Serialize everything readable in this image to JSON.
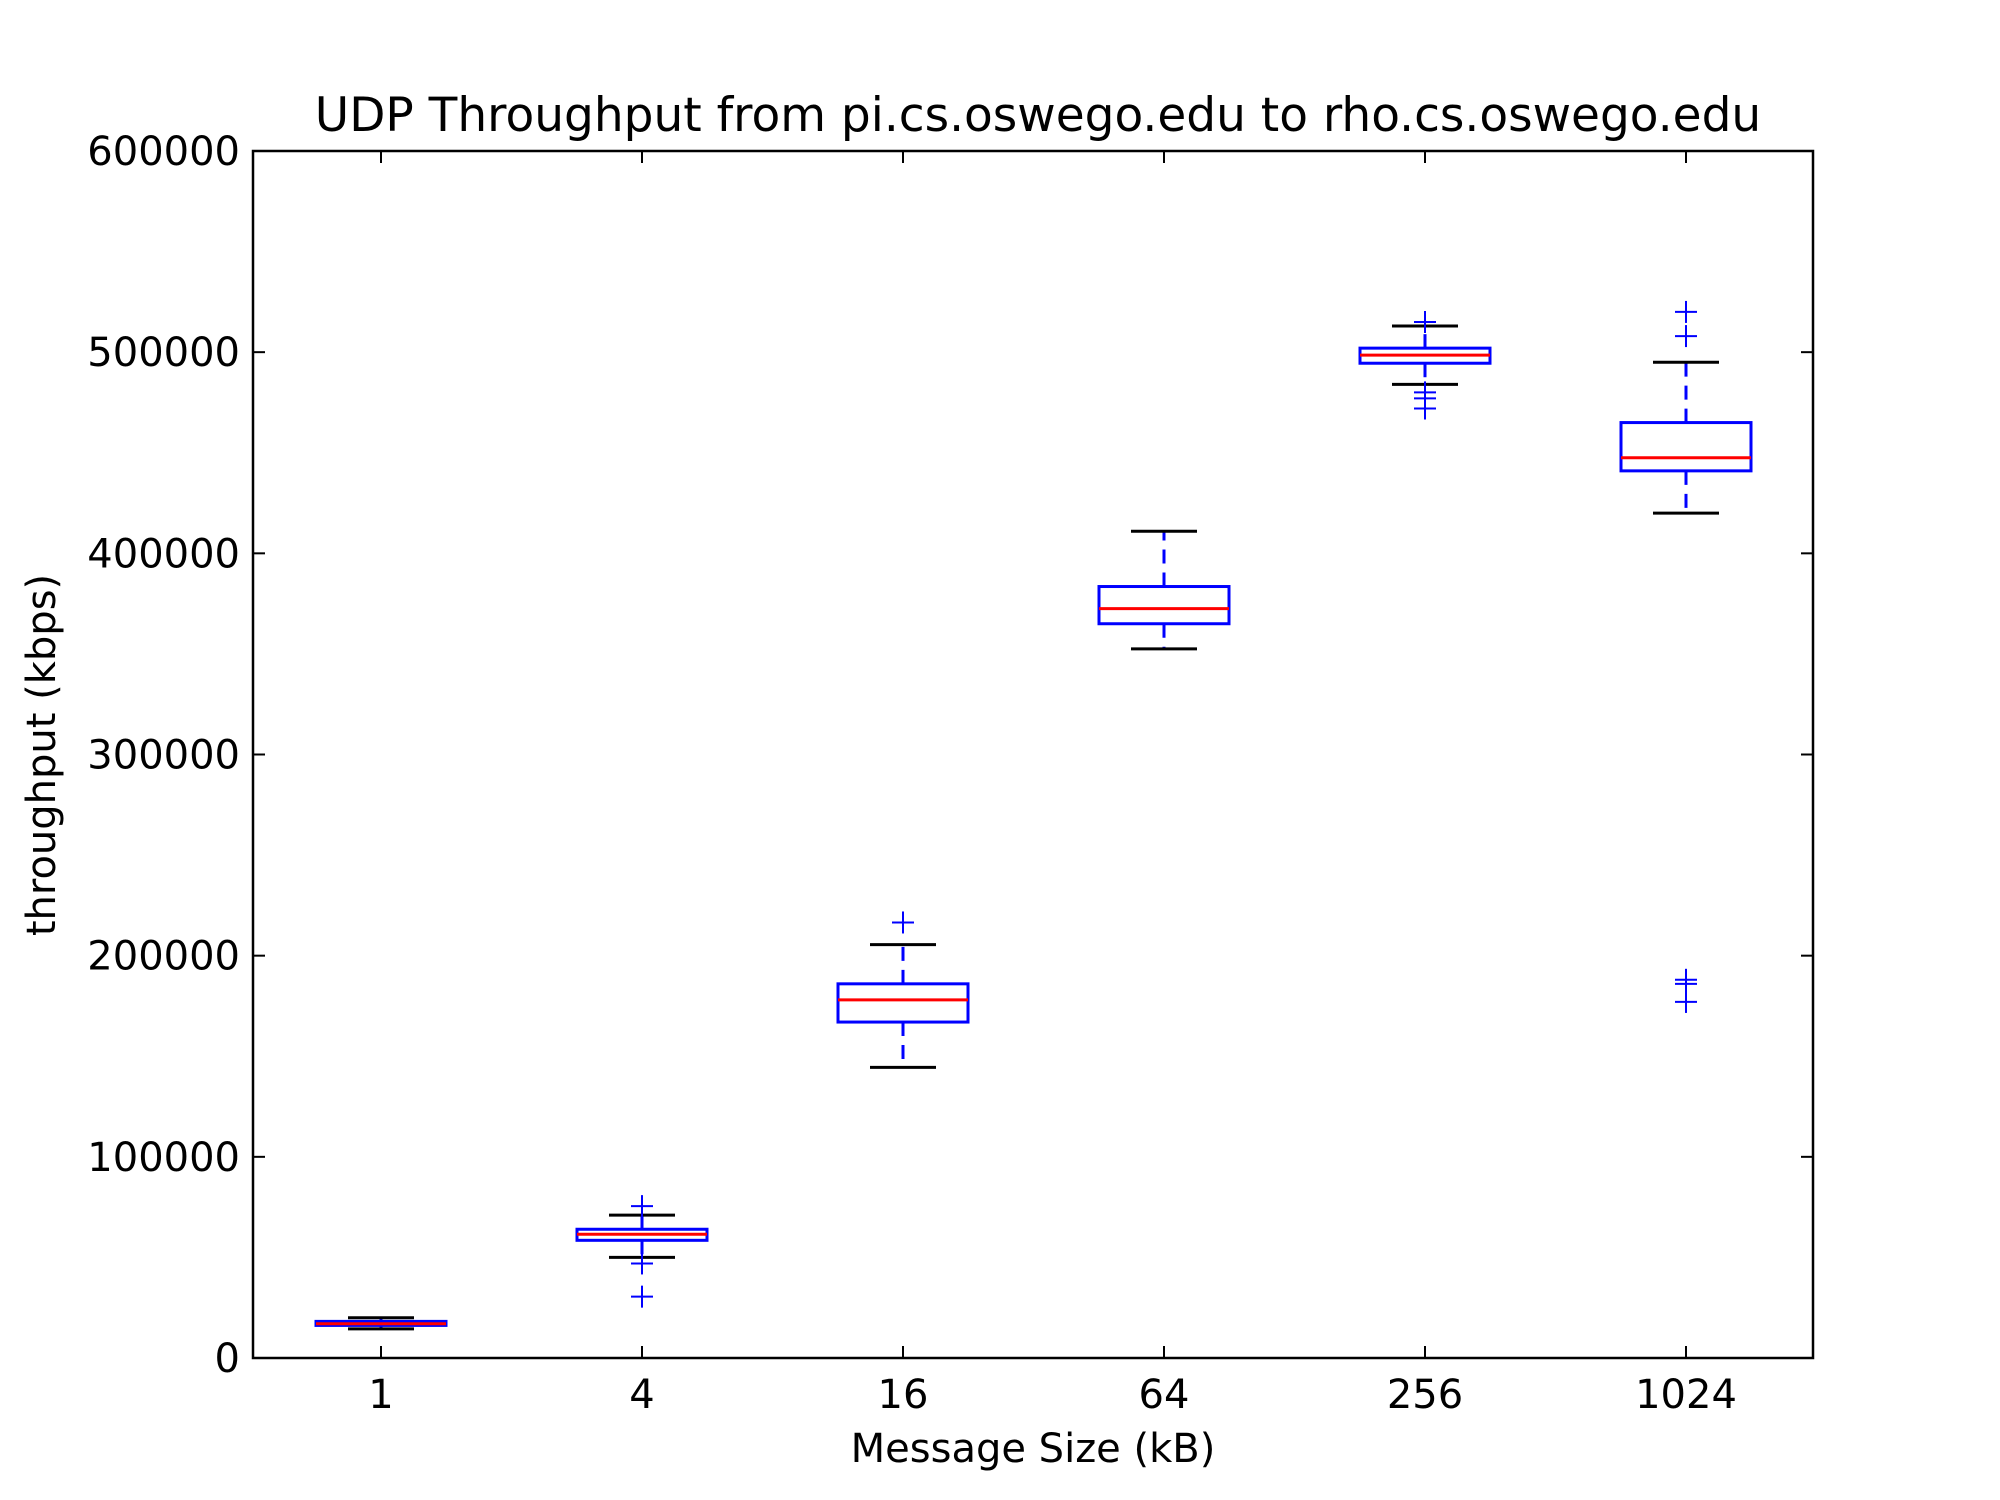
{
  "chart_data": {
    "type": "box",
    "title": "UDP Throughput from pi.cs.oswego.edu to rho.cs.oswego.edu",
    "xlabel": "Message Size (kB)",
    "ylabel": "throughput (kbps)",
    "ylim": [
      0,
      600000
    ],
    "yticks": [
      "0",
      "100000",
      "200000",
      "300000",
      "400000",
      "500000",
      "600000"
    ],
    "grid": false,
    "colors": {
      "box": "#0000ff",
      "median": "#ff0000",
      "whisker_cap": "#000000",
      "flier": "#0000ff"
    },
    "categories": [
      "1",
      "4",
      "16",
      "64",
      "256",
      "1024"
    ],
    "boxes": [
      {
        "label": "1",
        "whislo": 14500,
        "q1": 16200,
        "med": 17000,
        "q3": 18200,
        "whishi": 20000,
        "fliers": []
      },
      {
        "label": "4",
        "whislo": 50000,
        "q1": 58500,
        "med": 61500,
        "q3": 64000,
        "whishi": 71000,
        "fliers": [
          47000,
          30500,
          75500
        ]
      },
      {
        "label": "16",
        "whislo": 144500,
        "q1": 167000,
        "med": 178000,
        "q3": 186000,
        "whishi": 205500,
        "fliers": [
          216500
        ]
      },
      {
        "label": "64",
        "whislo": 352500,
        "q1": 365000,
        "med": 372500,
        "q3": 383500,
        "whishi": 411000,
        "fliers": []
      },
      {
        "label": "256",
        "whislo": 484000,
        "q1": 494500,
        "med": 498500,
        "q3": 502000,
        "whishi": 513000,
        "fliers": [
          480000,
          477000,
          472000,
          515000
        ]
      },
      {
        "label": "1024",
        "whislo": 420000,
        "q1": 441000,
        "med": 447500,
        "q3": 465000,
        "whishi": 495000,
        "fliers": [
          508000,
          520000,
          188000,
          186000,
          177000
        ]
      }
    ]
  }
}
